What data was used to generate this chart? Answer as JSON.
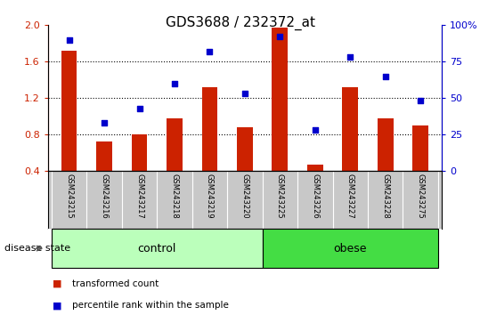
{
  "title": "GDS3688 / 232372_at",
  "samples": [
    "GSM243215",
    "GSM243216",
    "GSM243217",
    "GSM243218",
    "GSM243219",
    "GSM243220",
    "GSM243225",
    "GSM243226",
    "GSM243227",
    "GSM243228",
    "GSM243275"
  ],
  "transformed_count": [
    1.72,
    0.72,
    0.8,
    0.98,
    1.32,
    0.88,
    1.97,
    0.47,
    1.32,
    0.98,
    0.9
  ],
  "percentile_rank": [
    90,
    33,
    43,
    60,
    82,
    53,
    92,
    28,
    78,
    65,
    48
  ],
  "ylim_left": [
    0.4,
    2.0
  ],
  "ylim_right": [
    0,
    100
  ],
  "yticks_left": [
    0.4,
    0.8,
    1.2,
    1.6,
    2.0
  ],
  "yticks_right": [
    0,
    25,
    50,
    75,
    100
  ],
  "ytick_labels_right": [
    "0",
    "25",
    "50",
    "75",
    "100%"
  ],
  "bar_color": "#CC2200",
  "dot_color": "#0000CC",
  "bar_bottom": 0.4,
  "grid_lines": [
    0.8,
    1.2,
    1.6
  ],
  "n_control": 6,
  "n_obese": 5,
  "control_label": "control",
  "obese_label": "obese",
  "control_color": "#BBFFBB",
  "obese_color": "#44DD44",
  "label_bar": "transformed count",
  "label_dot": "percentile rank within the sample",
  "label_bg_color": "#C8C8C8",
  "disease_state_text": "disease state",
  "bar_width": 0.45
}
